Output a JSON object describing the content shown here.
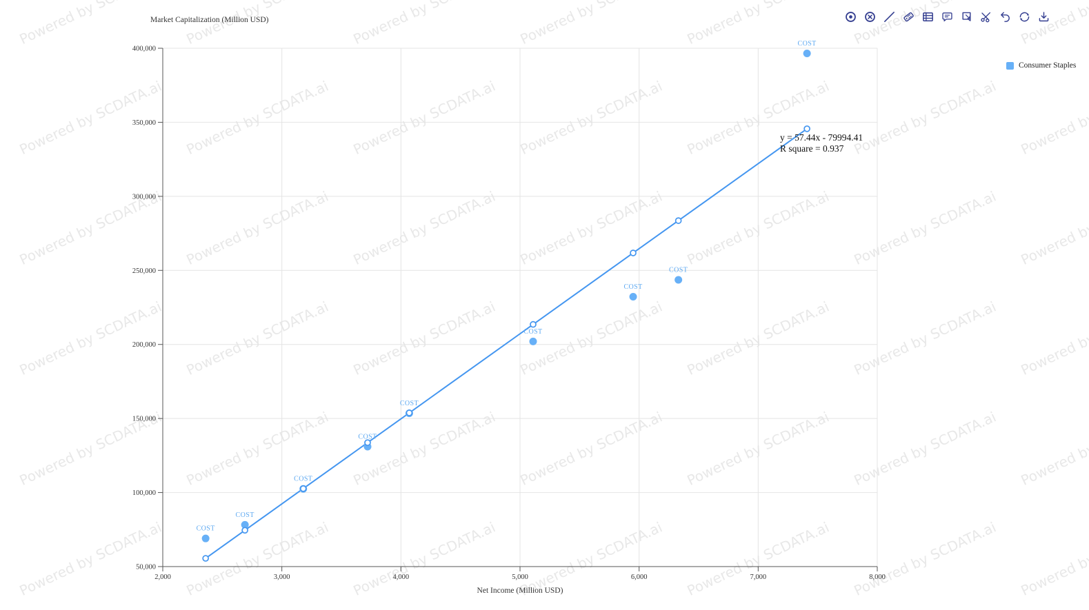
{
  "watermark": {
    "text": "Powered by SCDATA.ai"
  },
  "toolbar": {
    "icons": [
      "record",
      "circle-x",
      "trend-line",
      "tag",
      "table",
      "comment",
      "flag-select",
      "cut",
      "undo",
      "refresh",
      "download"
    ]
  },
  "chart_data": {
    "type": "scatter",
    "title": "",
    "xlabel": "Net Income (Million USD)",
    "ylabel": "Market Capitalization (Million USD)",
    "xlim": [
      2000,
      8000
    ],
    "ylim": [
      50000,
      400000
    ],
    "x_tick_step": 1000,
    "y_tick_step": 50000,
    "grid": true,
    "legend_position": "top-right",
    "series": [
      {
        "name": "Consumer Staples",
        "point_label": "COST",
        "points": [
          {
            "x": 2360,
            "y": 69000
          },
          {
            "x": 2690,
            "y": 78200
          },
          {
            "x": 3180,
            "y": 102500
          },
          {
            "x": 3720,
            "y": 131000
          },
          {
            "x": 4070,
            "y": 153500
          },
          {
            "x": 5110,
            "y": 202000
          },
          {
            "x": 5950,
            "y": 232200
          },
          {
            "x": 6330,
            "y": 243600
          },
          {
            "x": 7410,
            "y": 396500
          }
        ]
      }
    ],
    "trendline": {
      "slope": 57.44,
      "intercept": -79994.41,
      "equation_line1": "y = 57.44x - 79994.41",
      "equation_line2": "R square = 0.937",
      "r_square": 0.937
    },
    "colors": {
      "point": "#67b0f7",
      "trend": "#4496f0",
      "point_label": "#5ea9f1",
      "axis": "#555555",
      "grid": "#e4e4e4",
      "tick_text": "#333333"
    }
  }
}
